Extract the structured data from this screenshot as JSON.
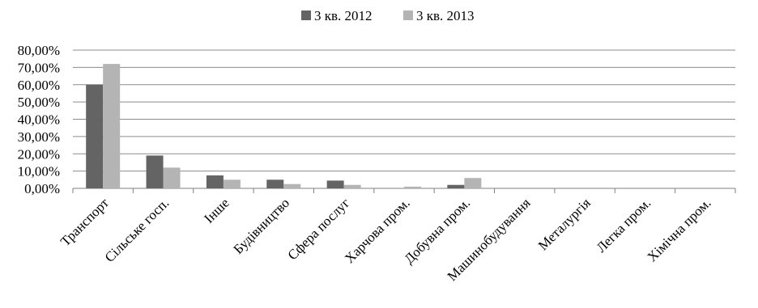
{
  "chart_data": {
    "type": "bar",
    "categories": [
      "Транспорт",
      "Сільське госп.",
      "Інше",
      "Будівництво",
      "Сфера послуг",
      "Харчова пром.",
      "Добувна пром.",
      "Машинобудування",
      "Металургія",
      "Легка пром.",
      "Хімічна пром."
    ],
    "series": [
      {
        "name": "3 кв. 2012",
        "color": "#646464",
        "values": [
          60.0,
          19.0,
          7.5,
          5.0,
          4.5,
          0.0,
          2.0,
          0.0,
          0.0,
          0.0,
          0.0
        ]
      },
      {
        "name": "3 кв. 2013",
        "color": "#b4b4b4",
        "values": [
          72.0,
          12.0,
          5.0,
          2.5,
          2.0,
          1.0,
          6.0,
          0.0,
          0.0,
          0.0,
          0.0
        ]
      }
    ],
    "y_ticks": [
      "0,00%",
      "10,00%",
      "20,00%",
      "30,00%",
      "40,00%",
      "50,00%",
      "60,00%",
      "70,00%",
      "80,00%"
    ],
    "ylim": [
      0,
      80
    ],
    "y_unit": "%",
    "grid": true,
    "legend_position": "top-center",
    "title": "",
    "xlabel": "",
    "ylabel": ""
  }
}
